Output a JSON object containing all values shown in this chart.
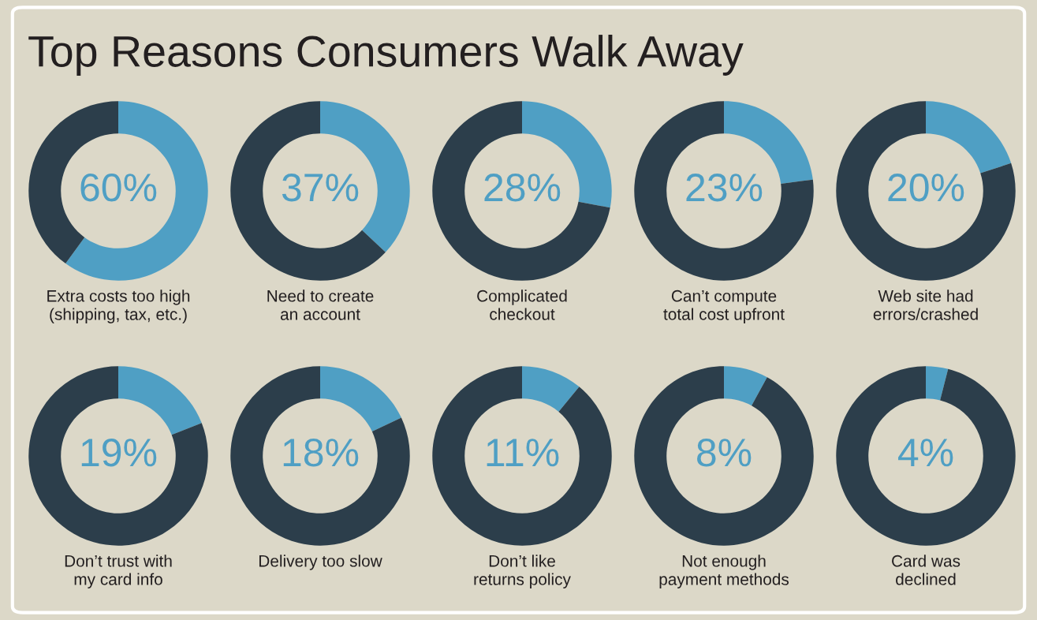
{
  "chart_data": [
    {
      "type": "other",
      "title": "Top Reasons Consumers Walk Away"
    },
    {
      "type": "donut",
      "title": "Extra costs too high\n(shipping, tax, etc.)",
      "categories": [
        null,
        null
      ],
      "values": [
        60,
        40
      ],
      "colors": [
        "#4f9fc4",
        "#2c3e4b"
      ],
      "value_labels": [
        "60%",
        null
      ]
    },
    {
      "type": "donut",
      "title": "Need to create\nan account",
      "categories": [
        null,
        null
      ],
      "values": [
        37,
        63
      ],
      "colors": [
        "#4f9fc4",
        "#2c3e4b"
      ],
      "value_labels": [
        "37%",
        null
      ]
    },
    {
      "type": "donut",
      "title": "Complicated\ncheckout",
      "categories": [
        null,
        null
      ],
      "values": [
        28,
        72
      ],
      "colors": [
        "#4f9fc4",
        "#2c3e4b"
      ],
      "value_labels": [
        "28%",
        null
      ]
    },
    {
      "type": "donut",
      "title": "Can’t compute\ntotal cost upfront",
      "categories": [
        null,
        null
      ],
      "values": [
        23,
        77
      ],
      "colors": [
        "#4f9fc4",
        "#2c3e4b"
      ],
      "value_labels": [
        "23%",
        null
      ]
    },
    {
      "type": "donut",
      "title": "Web site had\nerrors/crashed",
      "categories": [
        null,
        null
      ],
      "values": [
        20,
        80
      ],
      "colors": [
        "#4f9fc4",
        "#2c3e4b"
      ],
      "value_labels": [
        "20%",
        null
      ]
    },
    {
      "type": "donut",
      "title": "Don’t trust with\nmy card info",
      "categories": [
        null,
        null
      ],
      "values": [
        19,
        81
      ],
      "colors": [
        "#4f9fc4",
        "#2c3e4b"
      ],
      "value_labels": [
        "19%",
        null
      ]
    },
    {
      "type": "donut",
      "title": "Delivery too slow",
      "categories": [
        null,
        null
      ],
      "values": [
        18,
        82
      ],
      "colors": [
        "#4f9fc4",
        "#2c3e4b"
      ],
      "value_labels": [
        "18%",
        null
      ]
    },
    {
      "type": "donut",
      "title": "Don’t like\nreturns policy",
      "categories": [
        null,
        null
      ],
      "values": [
        11,
        89
      ],
      "colors": [
        "#4f9fc4",
        "#2c3e4b"
      ],
      "value_labels": [
        "11%",
        null
      ]
    },
    {
      "type": "donut",
      "title": "Not enough\npayment methods",
      "categories": [
        null,
        null
      ],
      "values": [
        8,
        92
      ],
      "colors": [
        "#4f9fc4",
        "#2c3e4b"
      ],
      "value_labels": [
        "8%",
        null
      ]
    },
    {
      "type": "donut",
      "title": "Card was\ndeclined",
      "categories": [
        null,
        null
      ],
      "values": [
        4,
        96
      ],
      "colors": [
        "#4f9fc4",
        "#2c3e4b"
      ],
      "value_labels": [
        "4%",
        null
      ]
    }
  ]
}
